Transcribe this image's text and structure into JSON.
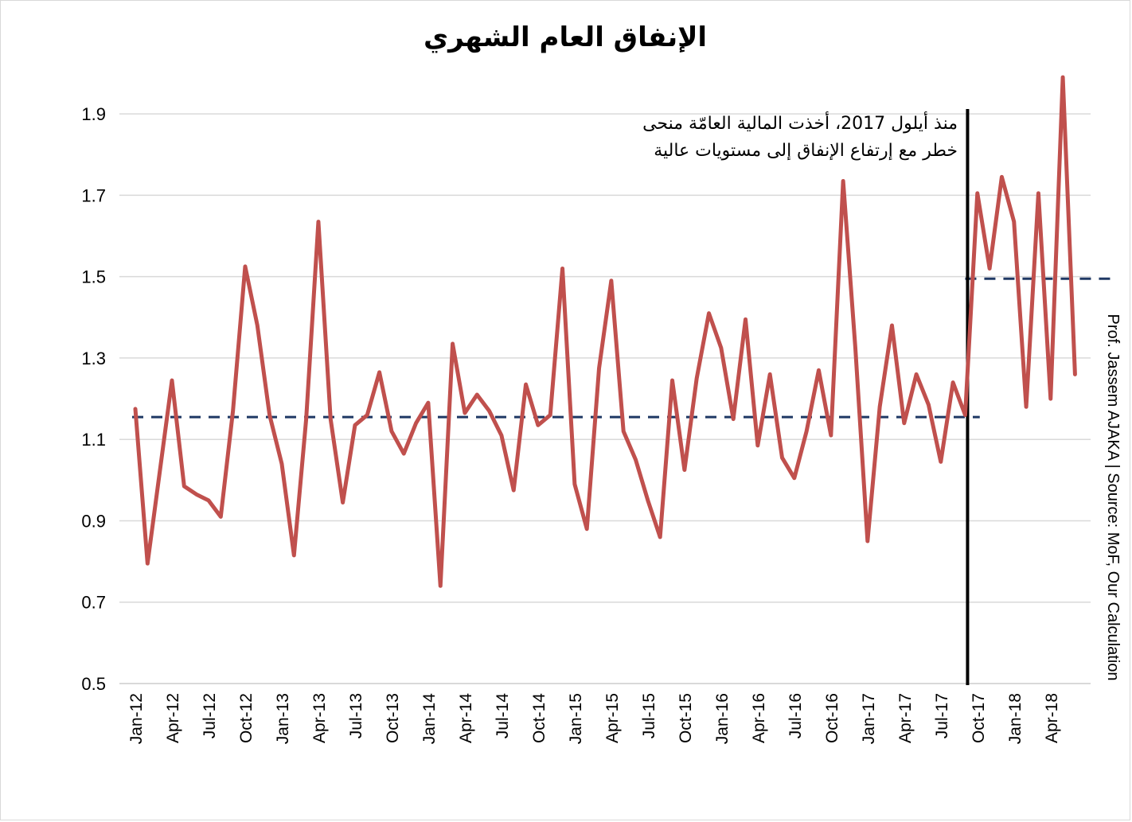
{
  "chart_data": {
    "type": "line",
    "title": "الإنفاق العام الشهري",
    "xlabel": "",
    "ylabel": "",
    "ylim": [
      0.5,
      2.0
    ],
    "yticks": [
      0.5,
      0.7,
      0.9,
      1.1,
      1.3,
      1.5,
      1.7,
      1.9
    ],
    "ytick_labels": [
      "0.5",
      "0.7",
      "0.9",
      "1.1",
      "1.3",
      "1.5",
      "1.7",
      "1.9"
    ],
    "grid": true,
    "x": [
      "Jan-12",
      "Feb-12",
      "Mar-12",
      "Apr-12",
      "May-12",
      "Jun-12",
      "Jul-12",
      "Aug-12",
      "Sep-12",
      "Oct-12",
      "Nov-12",
      "Dec-12",
      "Jan-13",
      "Feb-13",
      "Mar-13",
      "Apr-13",
      "May-13",
      "Jun-13",
      "Jul-13",
      "Aug-13",
      "Sep-13",
      "Oct-13",
      "Nov-13",
      "Dec-13",
      "Jan-14",
      "Feb-14",
      "Mar-14",
      "Apr-14",
      "May-14",
      "Jun-14",
      "Jul-14",
      "Aug-14",
      "Sep-14",
      "Oct-14",
      "Nov-14",
      "Dec-14",
      "Jan-15",
      "Feb-15",
      "Mar-15",
      "Apr-15",
      "May-15",
      "Jun-15",
      "Jul-15",
      "Aug-15",
      "Sep-15",
      "Oct-15",
      "Nov-15",
      "Dec-15",
      "Jan-16",
      "Feb-16",
      "Mar-16",
      "Apr-16",
      "May-16",
      "Jun-16",
      "Jul-16",
      "Aug-16",
      "Sep-16",
      "Oct-16",
      "Nov-16",
      "Dec-16",
      "Jan-17",
      "Feb-17",
      "Mar-17",
      "Apr-17",
      "May-17",
      "Jun-17",
      "Jul-17",
      "Aug-17",
      "Sep-17",
      "Oct-17",
      "Nov-17",
      "Dec-17",
      "Jan-18",
      "Feb-18",
      "Mar-18",
      "Apr-18",
      "May-18",
      "Jun-18"
    ],
    "x_tick_labels": [
      "Jan-12",
      "Apr-12",
      "Jul-12",
      "Oct-12",
      "Jan-13",
      "Apr-13",
      "Jul-13",
      "Oct-13",
      "Jan-14",
      "Apr-14",
      "Jul-14",
      "Oct-14",
      "Jan-15",
      "Apr-15",
      "Jul-15",
      "Oct-15",
      "Jan-16",
      "Apr-16",
      "Jul-16",
      "Oct-16",
      "Jan-17",
      "Apr-17",
      "Jul-17",
      "Oct-17",
      "Jan-18",
      "Apr-18"
    ],
    "series": [
      {
        "color": "#c0504d",
        "values": [
          1.175,
          0.795,
          1.02,
          1.245,
          0.985,
          0.965,
          0.95,
          0.91,
          1.17,
          1.525,
          1.38,
          1.16,
          1.04,
          0.815,
          1.15,
          1.635,
          1.15,
          0.945,
          1.135,
          1.16,
          1.265,
          1.12,
          1.065,
          1.14,
          1.19,
          0.74,
          1.335,
          1.165,
          1.21,
          1.17,
          1.11,
          0.975,
          1.235,
          1.135,
          1.16,
          1.52,
          0.99,
          0.88,
          1.275,
          1.49,
          1.12,
          1.05,
          0.95,
          0.86,
          1.245,
          1.025,
          1.25,
          1.41,
          1.325,
          1.15,
          1.395,
          1.085,
          1.26,
          1.055,
          1.005,
          1.12,
          1.27,
          1.11,
          1.735,
          1.325,
          0.85,
          1.18,
          1.38,
          1.14,
          1.26,
          1.185,
          1.045,
          1.24,
          1.16,
          1.705,
          1.52,
          1.745,
          1.635,
          1.18,
          1.705,
          1.2,
          1.99,
          1.26
        ]
      }
    ],
    "reference_lines": [
      {
        "value": 1.155,
        "from": "Jan-12",
        "to": "Oct-17",
        "color": "#1f3864",
        "style": "dashed"
      },
      {
        "value": 1.495,
        "from": "Sep-17",
        "to": "Jul-18",
        "color": "#1f3864",
        "style": "dashed"
      }
    ],
    "vertical_marker": {
      "at": "Sep-17",
      "color": "#000000"
    },
    "annotation": [
      "منذ أيلول 2017، أخذت المالية العامّة منحى",
      "خطر مع إرتفاع الإنفاق إلى مستويات عالية"
    ],
    "source": "Prof. Jassem AJAKA | Source: MoF, Our Calculation"
  }
}
